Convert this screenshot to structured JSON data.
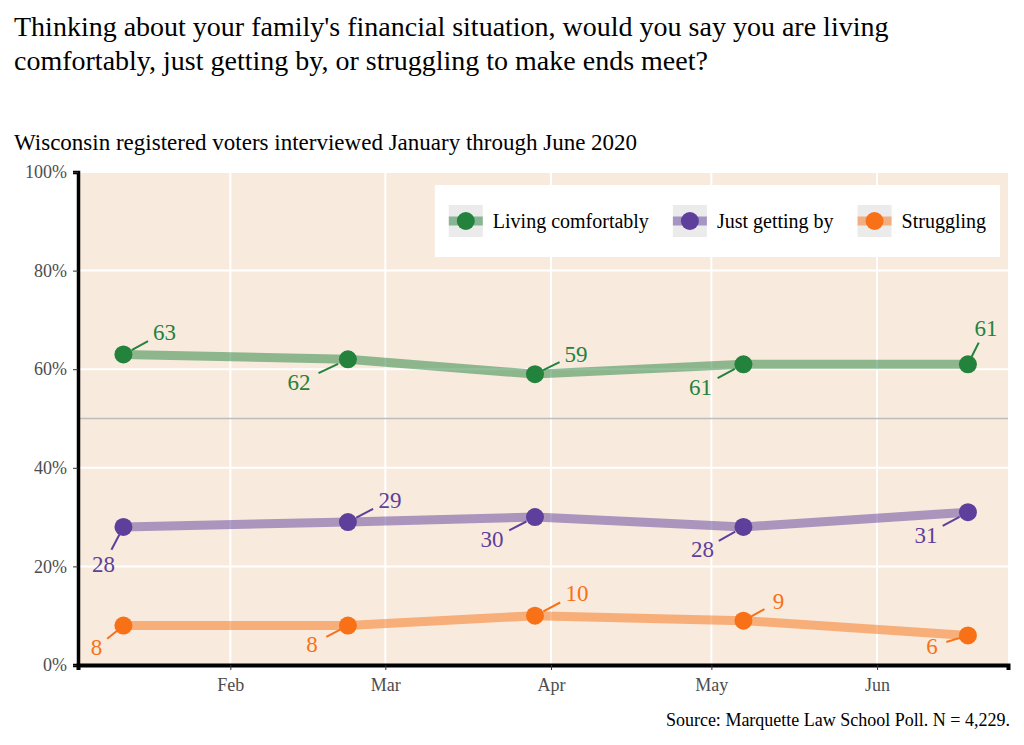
{
  "chart_data": {
    "type": "line",
    "title": "Thinking about your family's financial situation, would you say you are living comfortably, just getting by, or struggling to make ends meet?",
    "subtitle": "Wisconsin registered voters interviewed January through June 2020",
    "caption": "Source: Marquette Law School Poll. N = 4,229.",
    "x": [
      12,
      54,
      89,
      128,
      170
    ],
    "xlim": [
      3.5,
      177.5
    ],
    "xticks": [
      {
        "value": 32,
        "label": "Feb"
      },
      {
        "value": 61,
        "label": "Mar"
      },
      {
        "value": 92,
        "label": "Apr"
      },
      {
        "value": 122,
        "label": "May"
      },
      {
        "value": 153,
        "label": "Jun"
      }
    ],
    "ylim": [
      0,
      100
    ],
    "yticks": [
      {
        "value": 0,
        "label": "0%"
      },
      {
        "value": 20,
        "label": "20%"
      },
      {
        "value": 40,
        "label": "40%"
      },
      {
        "value": 60,
        "label": "60%"
      },
      {
        "value": 80,
        "label": "80%"
      },
      {
        "value": 100,
        "label": "100%"
      }
    ],
    "reference_line": 50,
    "grid": true,
    "legend": "top-right",
    "data_labels": true,
    "marker": "circle",
    "series": [
      {
        "name": "Living comfortably",
        "color": "#23823b",
        "values": [
          63,
          62,
          59,
          61,
          61
        ]
      },
      {
        "name": "Just getting by",
        "color": "#5e3f9b",
        "values": [
          28,
          29,
          30,
          28,
          31
        ]
      },
      {
        "name": "Struggling",
        "color": "#f87116",
        "values": [
          8,
          8,
          10,
          9,
          6
        ]
      }
    ]
  }
}
